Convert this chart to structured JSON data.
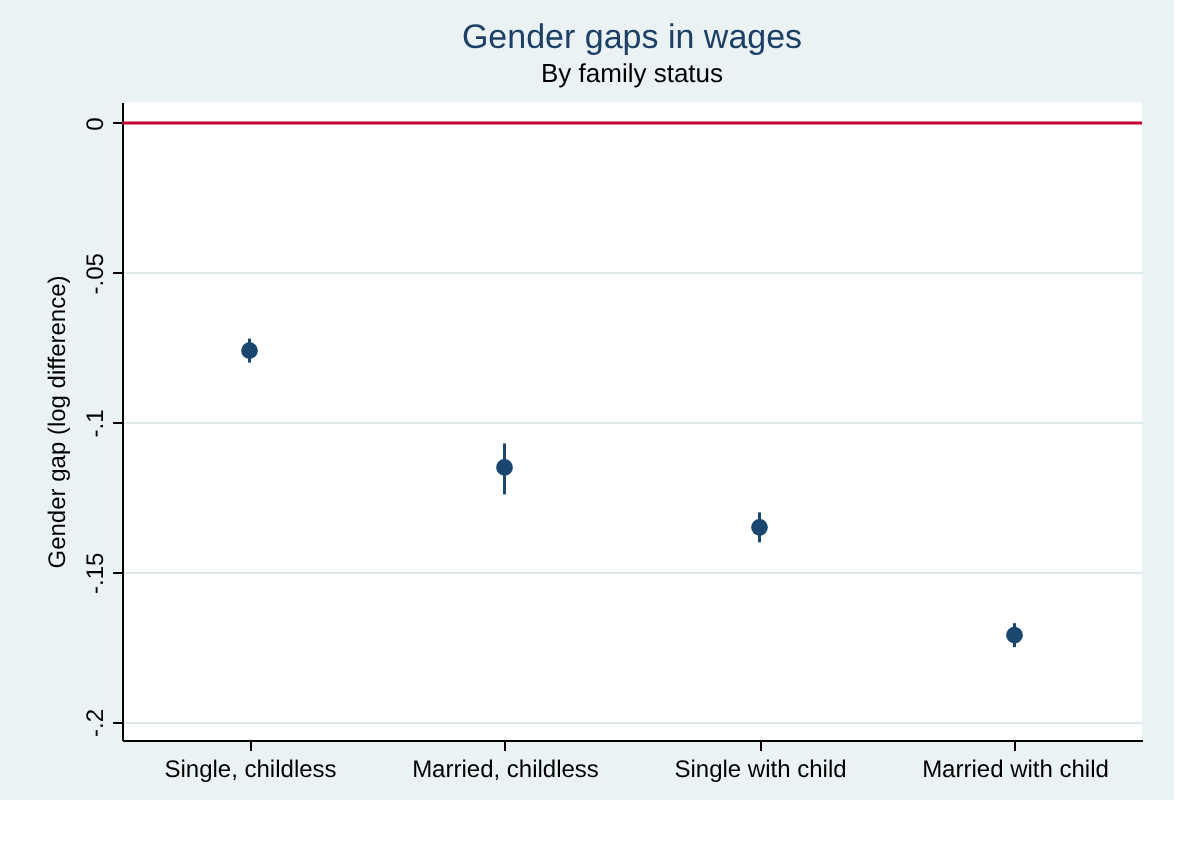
{
  "chart_data": {
    "type": "scatter",
    "title": "Gender gaps in wages",
    "subtitle": "By family status",
    "ylabel": "Gender gap (log difference)",
    "categories": [
      "Single, childless",
      "Married, childless",
      "Single with child",
      "Married with child"
    ],
    "values": [
      -0.076,
      -0.115,
      -0.135,
      -0.171
    ],
    "errors": [
      [
        -0.08,
        -0.072
      ],
      [
        -0.124,
        -0.107
      ],
      [
        -0.14,
        -0.13
      ],
      [
        -0.175,
        -0.167
      ]
    ],
    "color": "#1a476f",
    "marker": "circle",
    "grid": "y",
    "ylim": [
      -0.206,
      0.007
    ],
    "yticks": [
      {
        "value": 0,
        "label": "0"
      },
      {
        "value": -0.05,
        "label": "-.05"
      },
      {
        "value": -0.1,
        "label": "-.1"
      },
      {
        "value": -0.15,
        "label": "-.15"
      },
      {
        "value": -0.2,
        "label": "-.2"
      }
    ],
    "ref_lines": [
      {
        "axis": "y",
        "value": 0,
        "color": "#c10534"
      }
    ]
  }
}
